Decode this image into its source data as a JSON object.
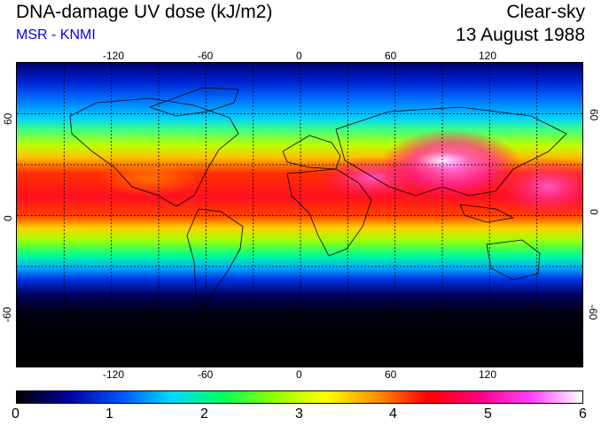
{
  "header": {
    "title": "DNA-damage UV dose (kJ/m2)",
    "subtitle": "MSR - KNMI",
    "condition": "Clear-sky",
    "date": "13 August 1988"
  },
  "map": {
    "lon_ticks_top": [
      "-120",
      "-60",
      "0",
      "60",
      "120"
    ],
    "lon_ticks_bottom": [
      "-120",
      "-60",
      "0",
      "60",
      "120"
    ],
    "lat_ticks_left": [
      "60",
      "0",
      "-60"
    ],
    "lat_ticks_right": [
      "60",
      "0",
      "-60"
    ]
  },
  "colorbar": {
    "labels": [
      "0",
      "1",
      "2",
      "3",
      "4",
      "5",
      "6"
    ],
    "min": 0,
    "max": 6,
    "stops": [
      "#000000",
      "#0000a0",
      "#0050ff",
      "#00d8ff",
      "#00ff60",
      "#90ff00",
      "#ffff00",
      "#ff9000",
      "#ff0000",
      "#ff0080",
      "#ff40ff",
      "#ffffff"
    ]
  },
  "colors": {
    "subtitle": "#0000ff",
    "grid": "#000000"
  }
}
